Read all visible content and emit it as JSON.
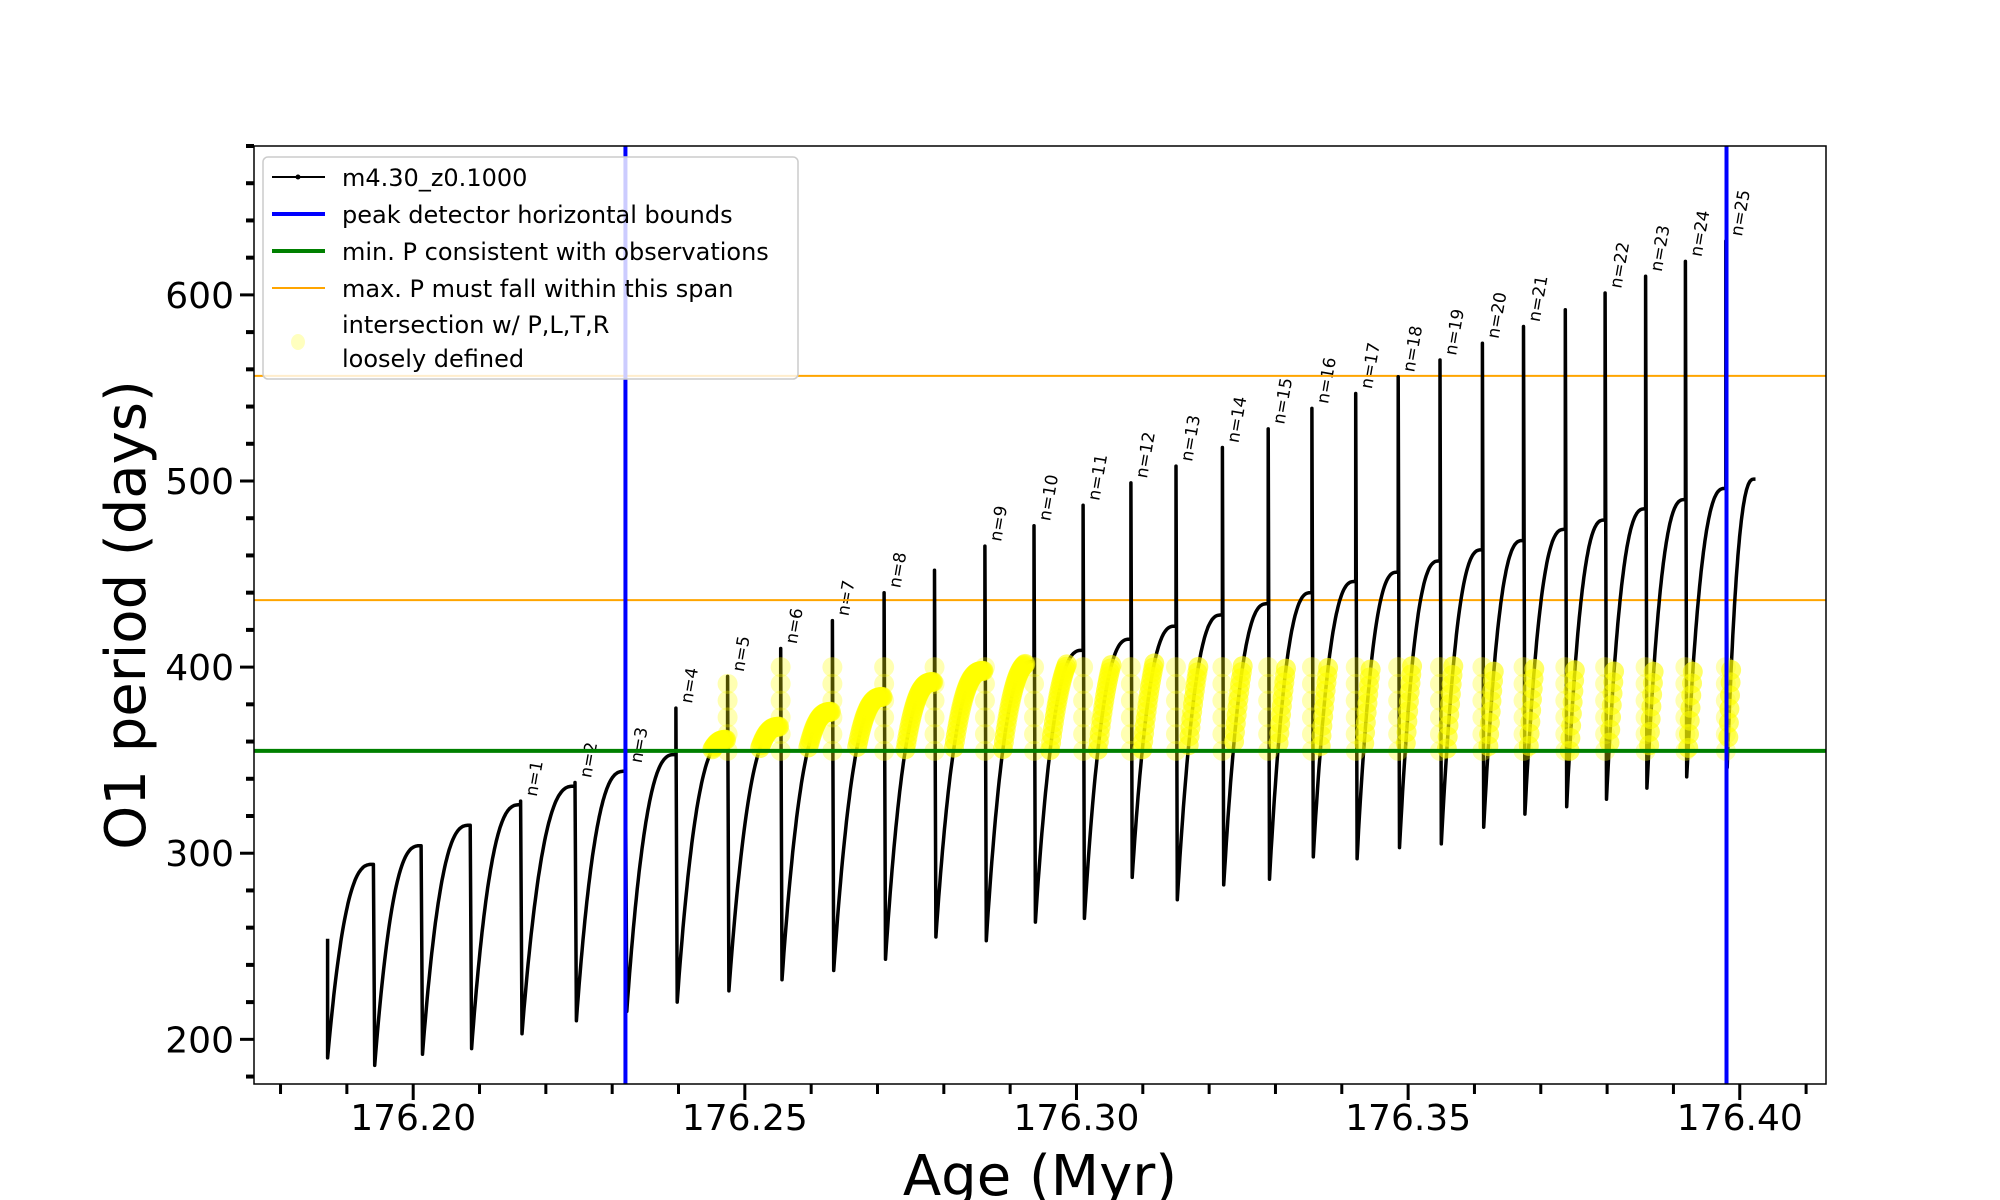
{
  "chart_data": {
    "type": "line",
    "xlabel": "Age (Myr)",
    "ylabel": "O1 period (days)",
    "xlim": [
      176.176,
      176.413
    ],
    "ylim": [
      176,
      680
    ],
    "xticks": [
      176.2,
      176.25,
      176.3,
      176.35,
      176.4
    ],
    "xtick_labels": [
      "176.20",
      "176.25",
      "176.30",
      "176.35",
      "176.40"
    ],
    "yticks": [
      200,
      300,
      400,
      500,
      600
    ],
    "ytick_labels": [
      "200",
      "300",
      "400",
      "500",
      "600"
    ],
    "x_minor_step": 0.01,
    "y_minor_step": 20,
    "grid": false,
    "legend_position": "top-left",
    "legend": [
      {
        "label": "m4.30_z0.1000",
        "color": "#000000",
        "kind": "line-marker"
      },
      {
        "label": "peak detector horizontal bounds",
        "color": "#0000ff",
        "kind": "line-thick"
      },
      {
        "label": "min. P consistent with observations",
        "color": "#008000",
        "kind": "line-thick"
      },
      {
        "label": "max. P must fall within this span",
        "color": "#ffa500",
        "kind": "line-thin"
      },
      {
        "label_lines": [
          "intersection w/ P,L,T,R",
          "loosely defined"
        ],
        "color": "#ffff00",
        "kind": "marker"
      }
    ],
    "vertical_lines": {
      "color": "#0000ff",
      "x": [
        176.232,
        176.398
      ]
    },
    "min_period_line": {
      "color": "#008000",
      "y": 355
    },
    "max_period_span": {
      "color": "#ffa500",
      "y": [
        436,
        556.5
      ]
    },
    "series": {
      "name": "m4.30_z0.1000",
      "start": {
        "age": 176.1871,
        "period": 254,
        "min": 190
      },
      "drop_ages": [
        176.194,
        176.2012,
        176.2086,
        176.2162,
        176.2244,
        176.232,
        176.2396,
        176.2474,
        176.2554,
        176.2632,
        176.271,
        176.2786,
        176.2862,
        176.2936,
        176.301,
        176.3082,
        176.315,
        176.322,
        176.3289,
        176.3355,
        176.3421,
        176.3485,
        176.3548,
        176.3612,
        176.3674,
        176.3737,
        176.3797,
        176.3858,
        176.3918,
        176.3979
      ],
      "cycle_maxima": [
        294,
        304,
        315,
        326,
        336,
        344,
        353,
        361,
        368,
        376,
        384,
        392,
        398,
        403,
        409,
        415,
        422,
        428,
        434,
        440,
        446,
        451,
        457,
        463,
        468,
        474,
        479,
        485,
        490,
        496
      ],
      "spike_peaks": [
        294,
        304,
        315,
        328,
        338,
        346,
        378,
        395,
        410,
        425,
        440,
        452,
        465,
        476,
        487,
        499,
        508,
        518,
        528,
        539,
        547,
        556,
        565,
        574,
        583,
        592,
        601,
        610,
        618,
        629
      ],
      "minima_after_drop": [
        186,
        192,
        195,
        203,
        210,
        215,
        220,
        226,
        232,
        237,
        243,
        255,
        253,
        263,
        265,
        287,
        275,
        283,
        286,
        298,
        297,
        303,
        305,
        314,
        321,
        325,
        329,
        335,
        341,
        346
      ],
      "spike_labels": [
        "",
        "",
        "",
        "n=1",
        "n=2",
        "n=3",
        "n=4",
        "n=5",
        "n=6",
        "n=7",
        "n=8",
        "",
        "n=9",
        "n=10",
        "n=11",
        "n=12",
        "n=13",
        "n=14",
        "n=15",
        "n=16",
        "n=17",
        "n=18",
        "n=19",
        "n=20",
        "n=21",
        "",
        "n=22",
        "n=23",
        "n=24",
        "n=25"
      ],
      "end": {
        "age": 176.4025,
        "period": 501
      }
    },
    "intersection_highlight": {
      "color": "#ffff00",
      "age_min": 176.243,
      "period_range": [
        355,
        402
      ]
    }
  }
}
